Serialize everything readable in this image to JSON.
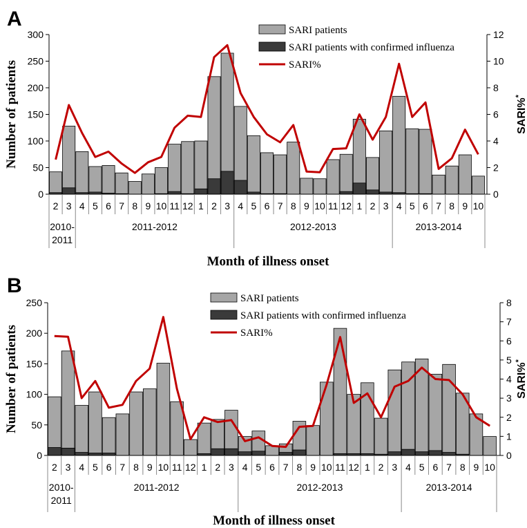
{
  "chart_data": [
    {
      "type": "bar",
      "panel_label": "A",
      "xlabel": "Month of illness onset",
      "ylabel": "Number of patients",
      "y2label": "SARI%",
      "y2label_superscript": "*",
      "ylim": [
        0,
        300
      ],
      "yticks": [
        "0",
        "50",
        "100",
        "150",
        "200",
        "250",
        "300"
      ],
      "y2lim": [
        0,
        12
      ],
      "y2ticks": [
        "0",
        "2",
        "4",
        "6",
        "8",
        "10",
        "12"
      ],
      "categories": [
        "2",
        "3",
        "4",
        "5",
        "6",
        "7",
        "8",
        "9",
        "10",
        "11",
        "12",
        "1",
        "2",
        "3",
        "4",
        "5",
        "6",
        "7",
        "8",
        "9",
        "10",
        "11",
        "12",
        "1",
        "2",
        "3",
        "4",
        "5",
        "6",
        "7",
        "8",
        "9",
        "10"
      ],
      "season_groups": [
        {
          "label": "2010-2011",
          "start": 0,
          "end": 1
        },
        {
          "label": "2011-2012",
          "start": 2,
          "end": 13
        },
        {
          "label": "2012-2013",
          "start": 14,
          "end": 25
        },
        {
          "label": "2013-2014",
          "start": 26,
          "end": 32
        }
      ],
      "legend_position": "top-center",
      "series": [
        {
          "name": "SARI patients",
          "kind": "bar",
          "color": "#a6a6a6",
          "values": [
            42,
            128,
            80,
            52,
            54,
            40,
            24,
            38,
            50,
            94,
            99,
            100,
            221,
            265,
            165,
            110,
            78,
            74,
            98,
            30,
            29,
            65,
            75,
            141,
            69,
            119,
            184,
            123,
            122,
            36,
            53,
            74,
            34
          ]
        },
        {
          "name": "SARI patients with confirmed influenza",
          "kind": "bar",
          "color": "#3a3a3a",
          "values": [
            3,
            12,
            3,
            4,
            2,
            1,
            0,
            0,
            1,
            5,
            1,
            10,
            29,
            43,
            26,
            4,
            1,
            1,
            0,
            0,
            0,
            0,
            5,
            21,
            8,
            4,
            3,
            1,
            1,
            0,
            0,
            0,
            0
          ]
        },
        {
          "name": "SARI%",
          "kind": "line",
          "axis": "right",
          "color": "#c00000",
          "values": [
            2.6,
            6.7,
            4.6,
            2.8,
            3.2,
            2.3,
            1.6,
            2.4,
            2.8,
            5.0,
            5.9,
            5.8,
            10.3,
            11.2,
            7.6,
            5.8,
            4.5,
            3.9,
            5.2,
            1.7,
            1.65,
            3.4,
            3.45,
            6.0,
            4.1,
            5.8,
            9.8,
            5.8,
            6.9,
            1.9,
            2.7,
            4.85,
            3.0
          ]
        }
      ]
    },
    {
      "type": "bar",
      "panel_label": "B",
      "xlabel": "Month of illness onset",
      "ylabel": "Number of patients",
      "y2label": "SARI%",
      "y2label_superscript": "*",
      "ylim": [
        0,
        250
      ],
      "yticks": [
        "0",
        "50",
        "100",
        "150",
        "200",
        "250"
      ],
      "y2lim": [
        0,
        8
      ],
      "y2ticks": [
        "0",
        "1",
        "2",
        "3",
        "4",
        "5",
        "6",
        "7",
        "8"
      ],
      "categories": [
        "2",
        "3",
        "4",
        "5",
        "6",
        "7",
        "8",
        "9",
        "10",
        "11",
        "12",
        "1",
        "2",
        "3",
        "4",
        "5",
        "6",
        "7",
        "8",
        "9",
        "10",
        "11",
        "12",
        "1",
        "2",
        "3",
        "4",
        "5",
        "6",
        "7",
        "8",
        "9",
        "10"
      ],
      "season_groups": [
        {
          "label": "2010-2011",
          "start": 0,
          "end": 1
        },
        {
          "label": "2011-2012",
          "start": 2,
          "end": 13
        },
        {
          "label": "2012-2013",
          "start": 14,
          "end": 25
        },
        {
          "label": "2013-2014",
          "start": 26,
          "end": 32
        }
      ],
      "legend_position": "top-center",
      "series": [
        {
          "name": "SARI patients",
          "kind": "bar",
          "color": "#a6a6a6",
          "values": [
            96,
            171,
            82,
            104,
            62,
            68,
            104,
            109,
            151,
            88,
            26,
            53,
            59,
            74,
            31,
            40,
            16,
            19,
            56,
            49,
            120,
            208,
            100,
            119,
            61,
            140,
            153,
            158,
            133,
            149,
            102,
            68,
            31
          ]
        },
        {
          "name": "SARI patients with confirmed influenza",
          "kind": "bar",
          "color": "#3a3a3a",
          "values": [
            13,
            12,
            5,
            4,
            4,
            0,
            0,
            0,
            0,
            0,
            0,
            3,
            11,
            11,
            6,
            7,
            0,
            5,
            9,
            0,
            0,
            3,
            3,
            3,
            2,
            6,
            10,
            6,
            8,
            5,
            2,
            0,
            0
          ]
        },
        {
          "name": "SARI%",
          "kind": "line",
          "axis": "right",
          "color": "#c00000",
          "values": [
            6.25,
            6.22,
            3.0,
            3.9,
            2.5,
            2.65,
            3.9,
            4.55,
            7.25,
            3.5,
            0.85,
            2.0,
            1.75,
            1.85,
            0.75,
            0.95,
            0.5,
            0.45,
            1.5,
            1.55,
            3.7,
            6.2,
            2.75,
            3.25,
            2.0,
            3.6,
            3.9,
            4.6,
            4.0,
            3.95,
            3.2,
            2.0,
            1.55
          ]
        }
      ]
    }
  ]
}
